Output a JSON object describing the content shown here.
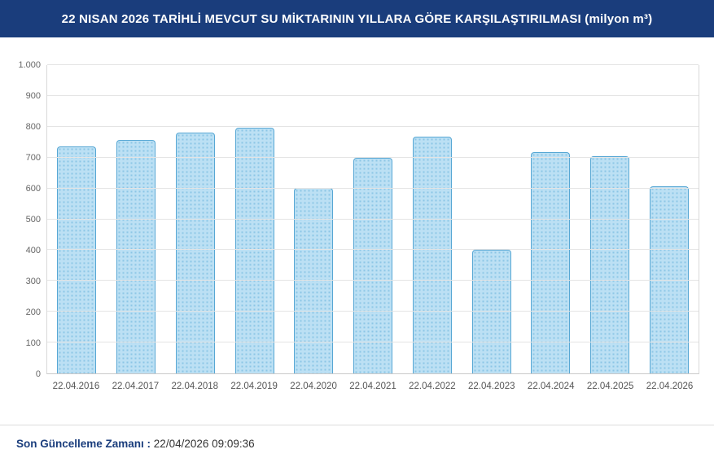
{
  "header": {
    "title": "22 NISAN 2026 TARİHLİ MEVCUT SU MİKTARININ YILLARA GÖRE KARŞILAŞTIRILMASI (milyon m³)"
  },
  "chart_data": {
    "type": "bar",
    "title": "22 NISAN 2026 TARİHLİ MEVCUT SU MİKTARININ YILLARA GÖRE KARŞILAŞTIRILMASI (milyon m³)",
    "categories": [
      "22.04.2016",
      "22.04.2017",
      "22.04.2018",
      "22.04.2019",
      "22.04.2020",
      "22.04.2021",
      "22.04.2022",
      "22.04.2023",
      "22.04.2024",
      "22.04.2025",
      "22.04.2026"
    ],
    "values": [
      737,
      757,
      780,
      797,
      602,
      700,
      768,
      400,
      717,
      705,
      607
    ],
    "xlabel": "",
    "ylabel": "",
    "ylim": [
      0,
      1000
    ],
    "yticks": [
      0,
      100,
      200,
      300,
      400,
      500,
      600,
      700,
      800,
      900,
      1000
    ],
    "ytick_labels": [
      "0",
      "100",
      "200",
      "300",
      "400",
      "500",
      "600",
      "700",
      "800",
      "900",
      "1.000"
    ],
    "grid": true,
    "legend_position": "none",
    "bar_fill_color": "#bce0f4",
    "bar_dot_color": "#8cc6e6",
    "bar_border_color": "#57a7d4"
  },
  "footer": {
    "label": "Son Güncelleme Zamanı",
    "separator": " : ",
    "value": "22/04/2026 09:09:36"
  }
}
